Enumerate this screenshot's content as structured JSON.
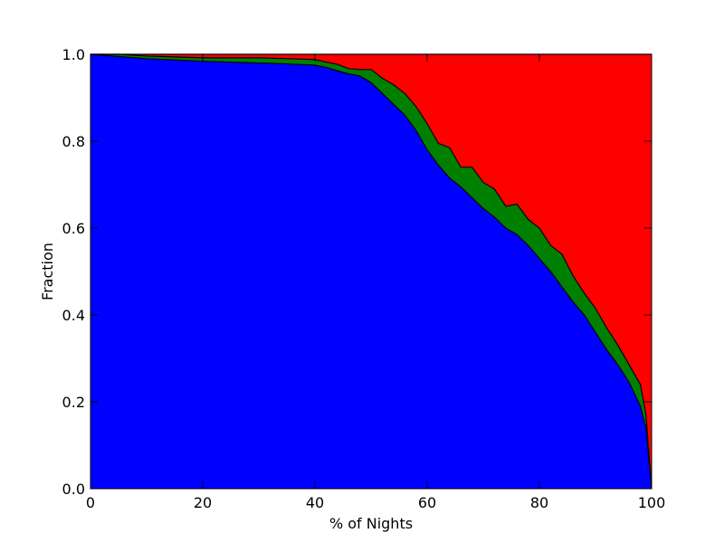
{
  "chart_data": {
    "type": "area",
    "stacked": true,
    "title": "",
    "xlabel": "% of Nights",
    "ylabel": "Fraction",
    "xlim": [
      0,
      100
    ],
    "ylim": [
      0,
      1
    ],
    "grid": false,
    "legend": "none",
    "x_ticks": [
      "0",
      "20",
      "40",
      "60",
      "80",
      "100"
    ],
    "y_ticks": [
      "0.0",
      "0.2",
      "0.4",
      "0.6",
      "0.8",
      "1.0"
    ],
    "x": [
      0,
      5,
      10,
      15,
      20,
      25,
      30,
      35,
      40,
      42,
      44,
      46,
      48,
      50,
      52,
      54,
      56,
      58,
      60,
      62,
      64,
      66,
      68,
      70,
      72,
      74,
      76,
      78,
      80,
      82,
      84,
      86,
      88,
      90,
      92,
      94,
      96,
      98,
      99,
      100
    ],
    "series": [
      {
        "color": "#0000ff",
        "values": [
          1.0,
          0.995,
          0.99,
          0.987,
          0.984,
          0.982,
          0.98,
          0.978,
          0.975,
          0.97,
          0.962,
          0.955,
          0.95,
          0.935,
          0.91,
          0.885,
          0.86,
          0.825,
          0.78,
          0.745,
          0.715,
          0.695,
          0.67,
          0.645,
          0.625,
          0.6,
          0.585,
          0.56,
          0.53,
          0.5,
          0.465,
          0.43,
          0.4,
          0.36,
          0.32,
          0.285,
          0.245,
          0.19,
          0.14,
          0.0
        ]
      },
      {
        "color": "#008000",
        "values": [
          0.0,
          0.005,
          0.006,
          0.007,
          0.008,
          0.01,
          0.012,
          0.012,
          0.013,
          0.012,
          0.015,
          0.012,
          0.015,
          0.03,
          0.035,
          0.045,
          0.05,
          0.055,
          0.06,
          0.05,
          0.07,
          0.045,
          0.07,
          0.06,
          0.065,
          0.05,
          0.07,
          0.06,
          0.07,
          0.06,
          0.075,
          0.06,
          0.05,
          0.055,
          0.05,
          0.045,
          0.04,
          0.05,
          0.03,
          0.0
        ]
      },
      {
        "color": "#ff0000",
        "values": [
          0.0,
          0.0,
          0.004,
          0.006,
          0.008,
          0.008,
          0.008,
          0.01,
          0.012,
          0.018,
          0.023,
          0.033,
          0.035,
          0.035,
          0.055,
          0.07,
          0.09,
          0.12,
          0.16,
          0.205,
          0.215,
          0.26,
          0.26,
          0.295,
          0.31,
          0.35,
          0.345,
          0.38,
          0.4,
          0.44,
          0.46,
          0.51,
          0.55,
          0.585,
          0.63,
          0.67,
          0.715,
          0.76,
          0.83,
          1.0
        ]
      }
    ]
  }
}
